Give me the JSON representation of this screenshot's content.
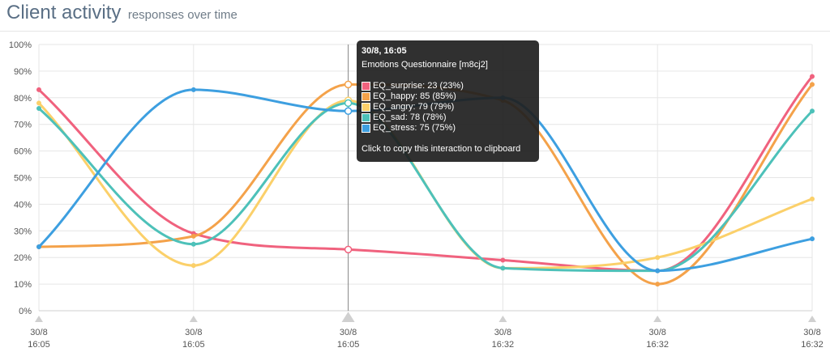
{
  "header": {
    "title": "Client activity",
    "subtitle": "responses over time"
  },
  "tooltip": {
    "title": "30/8, 16:05",
    "subtitle": "Emotions Questionnaire [m8cj2]",
    "rows": [
      "EQ_surprise: 23 (23%)",
      "EQ_happy: 85 (85%)",
      "EQ_angry: 79 (79%)",
      "EQ_sad: 78 (78%)",
      "EQ_stress: 75 (75%)"
    ],
    "footer": "Click to copy this interaction to clipboard"
  },
  "colors": {
    "EQ_surprise": "#f0627e",
    "EQ_happy": "#f4a24a",
    "EQ_angry": "#fbd06a",
    "EQ_sad": "#4dc1b9",
    "EQ_stress": "#3d9fe0"
  },
  "chart_data": {
    "type": "line",
    "x": [
      "30/8 16:05",
      "30/8 16:05",
      "30/8 16:05",
      "30/8 16:32",
      "30/8 16:32",
      "30/8 16:32"
    ],
    "x_tick_labels": [
      [
        "30/8",
        "16:05"
      ],
      [
        "30/8",
        "16:05"
      ],
      [
        "30/8",
        "16:05"
      ],
      [
        "30/8",
        "16:32"
      ],
      [
        "30/8",
        "16:32"
      ],
      [
        "30/8",
        "16:32"
      ]
    ],
    "y_ticks": [
      "0%",
      "10%",
      "20%",
      "30%",
      "40%",
      "50%",
      "60%",
      "70%",
      "80%",
      "90%",
      "100%"
    ],
    "ylim": [
      0,
      100
    ],
    "series": [
      {
        "name": "EQ_surprise",
        "values": [
          83,
          29,
          23,
          19,
          15,
          88
        ]
      },
      {
        "name": "EQ_happy",
        "values": [
          24,
          28,
          85,
          79,
          10,
          85
        ]
      },
      {
        "name": "EQ_angry",
        "values": [
          78,
          17,
          79,
          16,
          20,
          42
        ]
      },
      {
        "name": "EQ_sad",
        "values": [
          76,
          25,
          78,
          16,
          15,
          75
        ]
      },
      {
        "name": "EQ_stress",
        "values": [
          24,
          83,
          75,
          80,
          15,
          27
        ]
      }
    ],
    "highlight_index": 2,
    "grid": true
  }
}
